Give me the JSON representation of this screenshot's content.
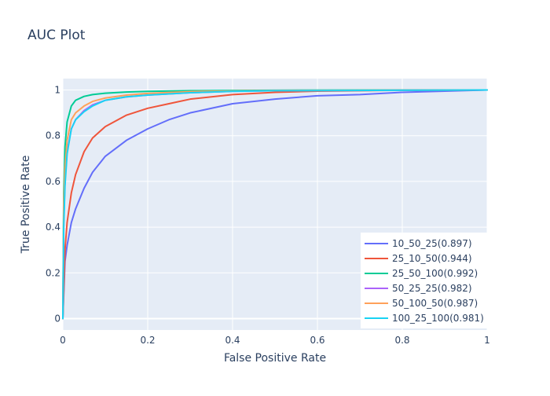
{
  "chart_data": {
    "type": "line",
    "title": "AUC Plot",
    "xlabel": "False Positive Rate",
    "ylabel": "True Positive Rate",
    "xlim": [
      0,
      1
    ],
    "ylim": [
      -0.05,
      1.05
    ],
    "x_ticks": [
      0,
      0.2,
      0.4,
      0.6,
      0.8,
      1
    ],
    "x_tick_labels": [
      "0",
      "0.2",
      "0.4",
      "0.6",
      "0.8",
      "1"
    ],
    "y_ticks": [
      0,
      0.2,
      0.4,
      0.6,
      0.8,
      1
    ],
    "y_tick_labels": [
      "0",
      "0.2",
      "0.4",
      "0.6",
      "0.8",
      "1"
    ],
    "grid": true,
    "legend_position": "bottom-right",
    "background_color": "#e5ecf6",
    "series": [
      {
        "name": "10_50_25(0.897)",
        "color": "#636efa",
        "x": [
          0,
          0.005,
          0.01,
          0.02,
          0.03,
          0.05,
          0.07,
          0.1,
          0.15,
          0.2,
          0.25,
          0.3,
          0.4,
          0.5,
          0.6,
          0.7,
          0.8,
          0.9,
          1
        ],
        "y": [
          0,
          0.25,
          0.32,
          0.42,
          0.48,
          0.57,
          0.64,
          0.71,
          0.78,
          0.83,
          0.87,
          0.9,
          0.94,
          0.96,
          0.975,
          0.98,
          0.99,
          0.995,
          1
        ]
      },
      {
        "name": "25_10_50(0.944)",
        "color": "#ef553b",
        "x": [
          0,
          0.005,
          0.01,
          0.02,
          0.03,
          0.05,
          0.07,
          0.1,
          0.15,
          0.2,
          0.25,
          0.3,
          0.4,
          0.5,
          0.6,
          0.8,
          1
        ],
        "y": [
          0,
          0.3,
          0.42,
          0.55,
          0.63,
          0.73,
          0.79,
          0.84,
          0.89,
          0.92,
          0.94,
          0.96,
          0.98,
          0.99,
          0.995,
          0.999,
          1
        ]
      },
      {
        "name": "25_50_100(0.992)",
        "color": "#00cc96",
        "x": [
          0,
          0.002,
          0.005,
          0.01,
          0.02,
          0.03,
          0.05,
          0.07,
          0.1,
          0.15,
          0.2,
          0.3,
          0.5,
          1
        ],
        "y": [
          0,
          0.55,
          0.75,
          0.86,
          0.93,
          0.955,
          0.972,
          0.98,
          0.986,
          0.991,
          0.994,
          0.997,
          0.999,
          1
        ]
      },
      {
        "name": "50_25_25(0.982)",
        "color": "#ab63fa",
        "x": [
          0,
          0.002,
          0.005,
          0.01,
          0.02,
          0.03,
          0.05,
          0.07,
          0.1,
          0.15,
          0.2,
          0.3,
          0.4,
          0.5,
          1
        ],
        "y": [
          0,
          0.42,
          0.6,
          0.73,
          0.83,
          0.87,
          0.91,
          0.935,
          0.955,
          0.97,
          0.978,
          0.988,
          0.994,
          0.997,
          1
        ]
      },
      {
        "name": "50_100_50(0.987)",
        "color": "#ffa15a",
        "x": [
          0,
          0.002,
          0.005,
          0.01,
          0.02,
          0.03,
          0.05,
          0.07,
          0.1,
          0.15,
          0.2,
          0.3,
          0.5,
          1
        ],
        "y": [
          0,
          0.5,
          0.66,
          0.78,
          0.87,
          0.9,
          0.93,
          0.95,
          0.965,
          0.978,
          0.985,
          0.993,
          0.998,
          1
        ]
      },
      {
        "name": "100_25_100(0.981)",
        "color": "#19d3f3",
        "x": [
          0,
          0.002,
          0.005,
          0.01,
          0.02,
          0.03,
          0.05,
          0.07,
          0.1,
          0.15,
          0.2,
          0.3,
          0.4,
          0.5,
          1
        ],
        "y": [
          0,
          0.4,
          0.58,
          0.72,
          0.83,
          0.87,
          0.905,
          0.93,
          0.955,
          0.97,
          0.978,
          0.988,
          0.994,
          0.997,
          1
        ]
      }
    ]
  }
}
